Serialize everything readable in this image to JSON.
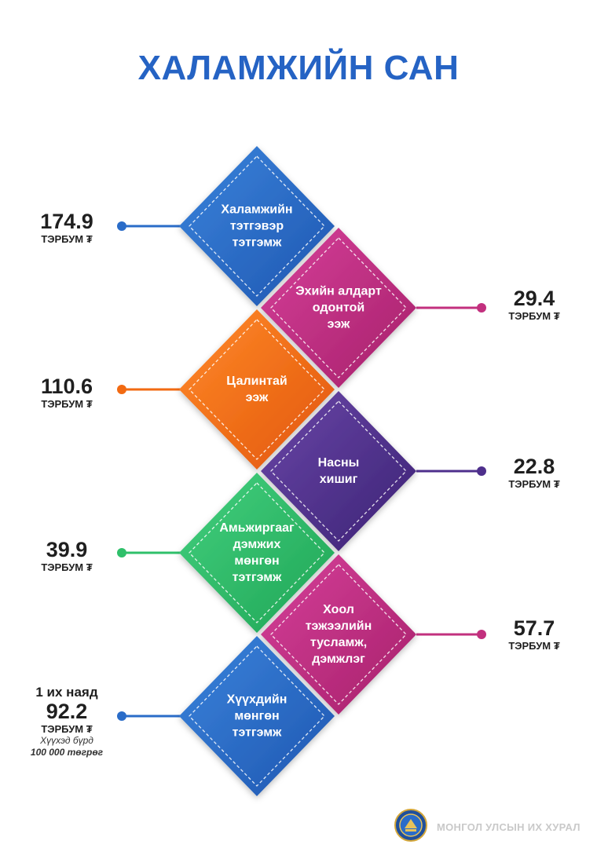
{
  "title": "ХАЛАМЖИЙН САН",
  "items": [
    {
      "label": "Халамжийн\nтэтгэвэр\nтэтгэмж",
      "value": "174.9",
      "unit": "ТЭРБУМ ₮",
      "color": "#2a6cc8"
    },
    {
      "label": "Эхийн алдарт\nодонтой\nээж",
      "value": "29.4",
      "unit": "ТЭРБУМ ₮",
      "color": "#c2307e"
    },
    {
      "label": "Цалинтай\nээж",
      "value": "110.6",
      "unit": "ТЭРБУМ ₮",
      "color": "#f26a12"
    },
    {
      "label": "Насны\nхишиг",
      "value": "22.8",
      "unit": "ТЭРБУМ ₮",
      "color": "#4e2f8c"
    },
    {
      "label": "Амьжиргааг\nдэмжих\nмөнгөн\nтэтгэмж",
      "value": "39.9",
      "unit": "ТЭРБУМ ₮",
      "color": "#2fc06a"
    },
    {
      "label": "Хоол\nтэжээлийн\nтусламж,\nдэмжлэг",
      "value": "57.7",
      "unit": "ТЭРБУМ ₮",
      "color": "#c2307e"
    },
    {
      "label": "Хүүхдийн\nмөнгөн\nтэтгэмж",
      "value": "92.2",
      "unit": "ТЭРБУМ ₮",
      "color": "#2a6cc8",
      "prefix": "1 их наяд",
      "note_line1": "Хүүхэд бүрд",
      "note_line2": "100 000 төгрөг"
    }
  ],
  "footer": "МОНГОЛ УЛСЫН ИХ ХУРАЛ"
}
